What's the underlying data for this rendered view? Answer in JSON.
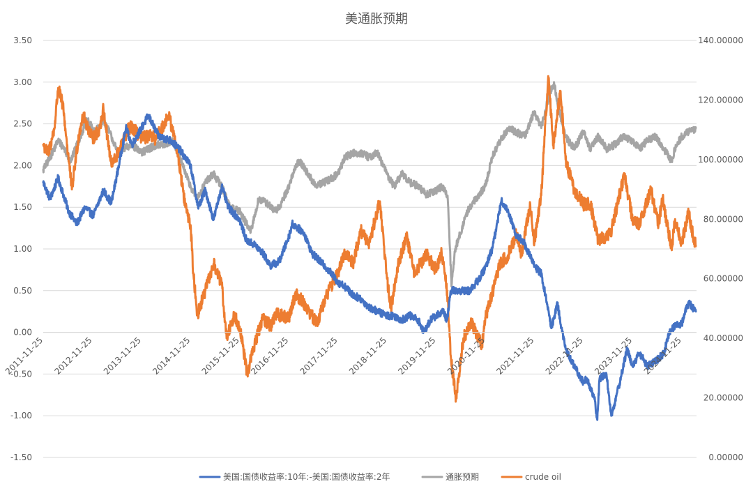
{
  "chart_data": {
    "type": "line",
    "title": "美通胀预期",
    "xlabel": "",
    "ylabel": "",
    "x_ticks": [
      "2011-11-25",
      "2012-11-25",
      "2013-11-25",
      "2014-11-25",
      "2015-11-25",
      "2016-11-25",
      "2017-11-25",
      "2018-11-25",
      "2019-11-25",
      "2020-11-25",
      "2021-11-25",
      "2022-11-25",
      "2023-11-25",
      "2024-11-25"
    ],
    "xlim": [
      "2011-11-25",
      "2025-03-15"
    ],
    "y_left": {
      "lim": [
        -1.5,
        3.5
      ],
      "ticks": [
        "3.50",
        "3.00",
        "2.50",
        "2.00",
        "1.50",
        "1.00",
        "0.50",
        "0.00",
        "-0.50",
        "-1.00",
        "-1.50"
      ]
    },
    "y_right": {
      "lim": [
        0,
        140
      ],
      "ticks": [
        "140.00000",
        "120.00000",
        "100.00000",
        "80.00000",
        "60.00000",
        "40.00000",
        "20.00000",
        "0.00000"
      ]
    },
    "grid": true,
    "legend_position": "bottom",
    "series": [
      {
        "name": "美国:国债收益率:10年:-美国:国债收益率:2年",
        "axis": "left",
        "color": "#4472c4",
        "points": [
          [
            "2011-11-25",
            1.8
          ],
          [
            "2012-01-15",
            1.6
          ],
          [
            "2012-03-15",
            1.85
          ],
          [
            "2012-06-01",
            1.45
          ],
          [
            "2012-08-01",
            1.3
          ],
          [
            "2012-10-01",
            1.5
          ],
          [
            "2012-12-01",
            1.4
          ],
          [
            "2013-02-15",
            1.7
          ],
          [
            "2013-04-15",
            1.55
          ],
          [
            "2013-06-15",
            2.05
          ],
          [
            "2013-08-01",
            2.45
          ],
          [
            "2013-09-15",
            2.25
          ],
          [
            "2013-11-25",
            2.45
          ],
          [
            "2014-01-15",
            2.6
          ],
          [
            "2014-04-01",
            2.35
          ],
          [
            "2014-07-01",
            2.3
          ],
          [
            "2014-09-01",
            2.2
          ],
          [
            "2014-11-25",
            2.0
          ],
          [
            "2015-01-20",
            1.5
          ],
          [
            "2015-03-15",
            1.7
          ],
          [
            "2015-05-15",
            1.35
          ],
          [
            "2015-07-15",
            1.75
          ],
          [
            "2015-09-01",
            1.5
          ],
          [
            "2015-11-25",
            1.35
          ],
          [
            "2016-01-15",
            1.1
          ],
          [
            "2016-03-15",
            1.05
          ],
          [
            "2016-05-15",
            0.95
          ],
          [
            "2016-07-10",
            0.8
          ],
          [
            "2016-09-15",
            0.85
          ],
          [
            "2016-11-25",
            1.15
          ],
          [
            "2016-12-20",
            1.3
          ],
          [
            "2017-03-15",
            1.2
          ],
          [
            "2017-05-15",
            0.95
          ],
          [
            "2017-07-15",
            0.85
          ],
          [
            "2017-09-15",
            0.75
          ],
          [
            "2017-11-25",
            0.6
          ],
          [
            "2018-01-15",
            0.55
          ],
          [
            "2018-03-15",
            0.45
          ],
          [
            "2018-05-15",
            0.4
          ],
          [
            "2018-07-15",
            0.3
          ],
          [
            "2018-09-15",
            0.25
          ],
          [
            "2018-11-25",
            0.2
          ],
          [
            "2019-01-15",
            0.2
          ],
          [
            "2019-03-15",
            0.15
          ],
          [
            "2019-05-15",
            0.2
          ],
          [
            "2019-07-15",
            0.15
          ],
          [
            "2019-08-25",
            0.0
          ],
          [
            "2019-10-15",
            0.15
          ],
          [
            "2019-11-25",
            0.2
          ],
          [
            "2020-01-15",
            0.25
          ],
          [
            "2020-02-15",
            0.15
          ],
          [
            "2020-03-15",
            0.5
          ],
          [
            "2020-05-15",
            0.5
          ],
          [
            "2020-08-01",
            0.5
          ],
          [
            "2020-10-15",
            0.65
          ],
          [
            "2020-12-01",
            0.8
          ],
          [
            "2021-01-15",
            1.0
          ],
          [
            "2021-02-15",
            1.25
          ],
          [
            "2021-03-25",
            1.58
          ],
          [
            "2021-05-15",
            1.45
          ],
          [
            "2021-07-15",
            1.15
          ],
          [
            "2021-09-01",
            1.1
          ],
          [
            "2021-11-25",
            0.8
          ],
          [
            "2022-01-15",
            0.7
          ],
          [
            "2022-02-15",
            0.45
          ],
          [
            "2022-03-15",
            0.2
          ],
          [
            "2022-04-01",
            0.05
          ],
          [
            "2022-05-15",
            0.35
          ],
          [
            "2022-06-15",
            0.05
          ],
          [
            "2022-07-15",
            -0.2
          ],
          [
            "2022-09-15",
            -0.4
          ],
          [
            "2022-11-25",
            -0.6
          ],
          [
            "2022-12-20",
            -0.55
          ],
          [
            "2023-02-15",
            -0.8
          ],
          [
            "2023-03-08",
            -1.05
          ],
          [
            "2023-03-25",
            -0.55
          ],
          [
            "2023-05-15",
            -0.5
          ],
          [
            "2023-06-20",
            -1.0
          ],
          [
            "2023-07-15",
            -0.85
          ],
          [
            "2023-08-15",
            -0.65
          ],
          [
            "2023-10-15",
            -0.2
          ],
          [
            "2023-11-25",
            -0.4
          ],
          [
            "2024-01-15",
            -0.25
          ],
          [
            "2024-03-15",
            -0.4
          ],
          [
            "2024-05-15",
            -0.35
          ],
          [
            "2024-07-15",
            -0.25
          ],
          [
            "2024-08-25",
            0.0
          ],
          [
            "2024-10-15",
            0.1
          ],
          [
            "2024-11-25",
            0.1
          ],
          [
            "2024-12-20",
            0.25
          ],
          [
            "2025-01-15",
            0.35
          ],
          [
            "2025-02-15",
            0.3
          ],
          [
            "2025-03-10",
            0.25
          ]
        ]
      },
      {
        "name": "通胀预期",
        "axis": "left",
        "color": "#a5a5a5",
        "points": [
          [
            "2011-11-25",
            1.95
          ],
          [
            "2012-01-15",
            2.1
          ],
          [
            "2012-03-15",
            2.3
          ],
          [
            "2012-05-01",
            2.2
          ],
          [
            "2012-06-15",
            2.05
          ],
          [
            "2012-08-15",
            2.3
          ],
          [
            "2012-10-15",
            2.55
          ],
          [
            "2012-12-15",
            2.4
          ],
          [
            "2013-02-15",
            2.55
          ],
          [
            "2013-04-15",
            2.35
          ],
          [
            "2013-06-01",
            2.15
          ],
          [
            "2013-07-15",
            2.2
          ],
          [
            "2013-09-15",
            2.25
          ],
          [
            "2013-11-25",
            2.15
          ],
          [
            "2014-01-15",
            2.2
          ],
          [
            "2014-03-15",
            2.25
          ],
          [
            "2014-05-15",
            2.25
          ],
          [
            "2014-07-15",
            2.3
          ],
          [
            "2014-09-15",
            2.05
          ],
          [
            "2014-11-25",
            1.75
          ],
          [
            "2015-01-15",
            1.6
          ],
          [
            "2015-03-15",
            1.8
          ],
          [
            "2015-05-15",
            1.9
          ],
          [
            "2015-07-15",
            1.75
          ],
          [
            "2015-09-15",
            1.5
          ],
          [
            "2015-11-25",
            1.45
          ],
          [
            "2016-01-15",
            1.3
          ],
          [
            "2016-02-15",
            1.2
          ],
          [
            "2016-04-15",
            1.6
          ],
          [
            "2016-06-15",
            1.55
          ],
          [
            "2016-08-15",
            1.45
          ],
          [
            "2016-09-15",
            1.5
          ],
          [
            "2016-11-25",
            1.75
          ],
          [
            "2017-01-15",
            2.0
          ],
          [
            "2017-02-15",
            2.05
          ],
          [
            "2017-04-15",
            1.9
          ],
          [
            "2017-06-15",
            1.75
          ],
          [
            "2017-08-15",
            1.8
          ],
          [
            "2017-10-15",
            1.85
          ],
          [
            "2017-11-25",
            1.9
          ],
          [
            "2018-01-15",
            2.1
          ],
          [
            "2018-03-15",
            2.15
          ],
          [
            "2018-05-15",
            2.15
          ],
          [
            "2018-07-15",
            2.1
          ],
          [
            "2018-09-15",
            2.15
          ],
          [
            "2018-11-25",
            1.9
          ],
          [
            "2019-01-15",
            1.75
          ],
          [
            "2019-03-15",
            1.9
          ],
          [
            "2019-05-15",
            1.8
          ],
          [
            "2019-07-15",
            1.75
          ],
          [
            "2019-09-15",
            1.65
          ],
          [
            "2019-11-25",
            1.7
          ],
          [
            "2020-01-15",
            1.75
          ],
          [
            "2020-02-20",
            1.6
          ],
          [
            "2020-03-19",
            0.55
          ],
          [
            "2020-04-15",
            1.0
          ],
          [
            "2020-05-15",
            1.15
          ],
          [
            "2020-07-15",
            1.45
          ],
          [
            "2020-09-15",
            1.6
          ],
          [
            "2020-11-25",
            1.75
          ],
          [
            "2021-01-15",
            2.1
          ],
          [
            "2021-03-15",
            2.3
          ],
          [
            "2021-05-15",
            2.45
          ],
          [
            "2021-07-15",
            2.4
          ],
          [
            "2021-09-15",
            2.35
          ],
          [
            "2021-11-25",
            2.65
          ],
          [
            "2022-01-15",
            2.45
          ],
          [
            "2022-03-15",
            2.85
          ],
          [
            "2022-04-20",
            3.0
          ],
          [
            "2022-05-15",
            2.75
          ],
          [
            "2022-07-15",
            2.35
          ],
          [
            "2022-09-15",
            2.2
          ],
          [
            "2022-11-25",
            2.4
          ],
          [
            "2023-01-15",
            2.2
          ],
          [
            "2023-03-15",
            2.35
          ],
          [
            "2023-05-15",
            2.2
          ],
          [
            "2023-07-15",
            2.25
          ],
          [
            "2023-09-15",
            2.35
          ],
          [
            "2023-11-25",
            2.3
          ],
          [
            "2024-01-15",
            2.2
          ],
          [
            "2024-03-15",
            2.3
          ],
          [
            "2024-05-15",
            2.35
          ],
          [
            "2024-07-15",
            2.2
          ],
          [
            "2024-09-10",
            2.05
          ],
          [
            "2024-10-15",
            2.25
          ],
          [
            "2024-11-25",
            2.35
          ],
          [
            "2025-01-15",
            2.4
          ],
          [
            "2025-03-10",
            2.45
          ]
        ]
      },
      {
        "name": "crude oil",
        "axis": "right",
        "color": "#ed7d31",
        "points": [
          [
            "2011-11-25",
            105.0
          ],
          [
            "2012-01-01",
            102.0
          ],
          [
            "2012-02-15",
            110.0
          ],
          [
            "2012-03-15",
            124.0
          ],
          [
            "2012-04-20",
            118.0
          ],
          [
            "2012-06-25",
            90.0
          ],
          [
            "2012-08-15",
            108.0
          ],
          [
            "2012-09-15",
            115.0
          ],
          [
            "2012-11-25",
            107.0
          ],
          [
            "2013-01-15",
            110.0
          ],
          [
            "2013-02-15",
            117.0
          ],
          [
            "2013-04-15",
            98.0
          ],
          [
            "2013-06-15",
            103.0
          ],
          [
            "2013-08-15",
            110.0
          ],
          [
            "2013-09-15",
            111.0
          ],
          [
            "2013-11-25",
            107.0
          ],
          [
            "2014-01-15",
            108.0
          ],
          [
            "2014-03-15",
            107.0
          ],
          [
            "2014-06-15",
            115.0
          ],
          [
            "2014-08-15",
            104.0
          ],
          [
            "2014-10-15",
            85.0
          ],
          [
            "2014-11-25",
            78.0
          ],
          [
            "2014-12-15",
            62.0
          ],
          [
            "2015-01-15",
            48.0
          ],
          [
            "2015-03-15",
            56.0
          ],
          [
            "2015-05-15",
            65.0
          ],
          [
            "2015-07-15",
            58.0
          ],
          [
            "2015-08-20",
            40.0
          ],
          [
            "2015-10-15",
            48.0
          ],
          [
            "2015-11-25",
            44.0
          ],
          [
            "2016-01-20",
            28.0
          ],
          [
            "2016-03-15",
            38.0
          ],
          [
            "2016-05-15",
            47.0
          ],
          [
            "2016-07-15",
            44.0
          ],
          [
            "2016-08-15",
            48.0
          ],
          [
            "2016-11-25",
            47.0
          ],
          [
            "2017-01-15",
            55.0
          ],
          [
            "2017-03-15",
            52.0
          ],
          [
            "2017-06-20",
            45.0
          ],
          [
            "2017-09-15",
            56.0
          ],
          [
            "2017-11-25",
            62.0
          ],
          [
            "2018-01-20",
            69.0
          ],
          [
            "2018-03-15",
            65.0
          ],
          [
            "2018-05-15",
            76.0
          ],
          [
            "2018-07-15",
            72.0
          ],
          [
            "2018-10-03",
            86.0
          ],
          [
            "2018-11-25",
            60.0
          ],
          [
            "2018-12-25",
            50.0
          ],
          [
            "2019-02-15",
            65.0
          ],
          [
            "2019-04-20",
            74.0
          ],
          [
            "2019-06-15",
            62.0
          ],
          [
            "2019-09-15",
            68.0
          ],
          [
            "2019-11-25",
            63.0
          ],
          [
            "2020-01-05",
            69.0
          ],
          [
            "2020-02-15",
            56.0
          ],
          [
            "2020-03-15",
            33.0
          ],
          [
            "2020-04-21",
            20.0
          ],
          [
            "2020-06-15",
            40.0
          ],
          [
            "2020-08-15",
            45.0
          ],
          [
            "2020-11-01",
            38.0
          ],
          [
            "2020-11-25",
            47.0
          ],
          [
            "2021-01-15",
            55.0
          ],
          [
            "2021-03-15",
            65.0
          ],
          [
            "2021-05-15",
            68.0
          ],
          [
            "2021-07-15",
            75.0
          ],
          [
            "2021-08-20",
            68.0
          ],
          [
            "2021-10-25",
            85.0
          ],
          [
            "2021-11-25",
            72.0
          ],
          [
            "2022-01-15",
            88.0
          ],
          [
            "2022-03-08",
            128.0
          ],
          [
            "2022-04-15",
            105.0
          ],
          [
            "2022-06-08",
            123.0
          ],
          [
            "2022-07-15",
            100.0
          ],
          [
            "2022-09-15",
            90.0
          ],
          [
            "2022-11-25",
            85.0
          ],
          [
            "2023-01-15",
            85.0
          ],
          [
            "2023-03-15",
            73.0
          ],
          [
            "2023-05-01",
            74.0
          ],
          [
            "2023-06-15",
            75.0
          ],
          [
            "2023-09-25",
            95.0
          ],
          [
            "2023-11-25",
            80.0
          ],
          [
            "2024-01-15",
            78.0
          ],
          [
            "2024-04-10",
            90.0
          ],
          [
            "2024-06-05",
            78.0
          ],
          [
            "2024-07-05",
            87.0
          ],
          [
            "2024-09-10",
            70.0
          ],
          [
            "2024-10-07",
            80.0
          ],
          [
            "2024-11-25",
            72.0
          ],
          [
            "2025-01-15",
            82.0
          ],
          [
            "2025-02-15",
            75.0
          ],
          [
            "2025-03-10",
            71.0
          ]
        ]
      }
    ]
  }
}
